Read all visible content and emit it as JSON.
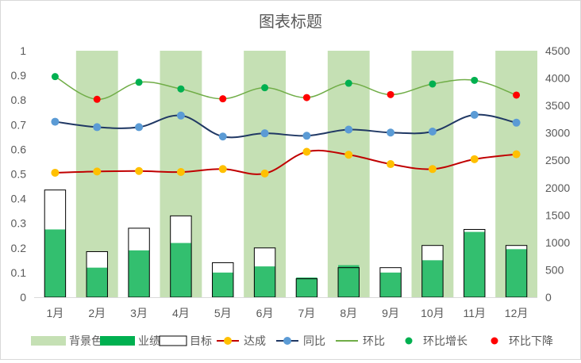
{
  "chart_data": {
    "type": "bar",
    "title": "图表标题",
    "categories": [
      "1月",
      "2月",
      "3月",
      "4月",
      "5月",
      "6月",
      "7月",
      "8月",
      "9月",
      "10月",
      "11月",
      "12月"
    ],
    "left_axis": {
      "min": 0,
      "max": 1,
      "ticks": [
        "0",
        "0.1",
        "0.2",
        "0.3",
        "0.4",
        "0.5",
        "0.6",
        "0.7",
        "0.8",
        "0.9",
        "1"
      ]
    },
    "right_axis": {
      "min": 0,
      "max": 4500,
      "ticks": [
        "0",
        "500",
        "1000",
        "1500",
        "2000",
        "2500",
        "3000",
        "3500",
        "4000",
        "4500"
      ]
    },
    "background_bands": [
      0,
      1,
      0,
      1,
      0,
      1,
      0,
      1,
      0,
      1,
      0,
      1
    ],
    "series": [
      {
        "name": "背景色",
        "kind": "band",
        "color": "#c5e0b4"
      },
      {
        "name": "业绩",
        "kind": "bar",
        "color": "#33bf6f",
        "values": [
          0.275,
          0.12,
          0.19,
          0.22,
          0.1,
          0.125,
          0.08,
          0.13,
          0.1,
          0.15,
          0.265,
          0.195
        ]
      },
      {
        "name": "目标",
        "kind": "bar-outline",
        "color": "#000000",
        "values": [
          0.435,
          0.185,
          0.28,
          0.33,
          0.14,
          0.2,
          0.075,
          0.12,
          0.12,
          0.21,
          0.275,
          0.21
        ]
      },
      {
        "name": "达成",
        "kind": "line",
        "color": "#c00000",
        "marker": "#ffc000",
        "values": [
          0.505,
          0.51,
          0.512,
          0.508,
          0.52,
          0.502,
          0.59,
          0.578,
          0.54,
          0.52,
          0.56,
          0.58
        ]
      },
      {
        "name": "同比",
        "kind": "line",
        "color": "#203864",
        "marker": "#5b9bd5",
        "values": [
          0.712,
          0.69,
          0.69,
          0.737,
          0.652,
          0.665,
          0.655,
          0.68,
          0.668,
          0.672,
          0.74,
          0.708
        ]
      },
      {
        "name": "环比",
        "kind": "line",
        "color": "#70ad47",
        "values": [
          0.895,
          0.803,
          0.872,
          0.845,
          0.805,
          0.85,
          0.81,
          0.868,
          0.822,
          0.865,
          0.88,
          0.82
        ]
      },
      {
        "name": "环比增长",
        "kind": "marker",
        "color": "#00b050"
      },
      {
        "name": "环比下降",
        "kind": "marker",
        "color": "#ff0000"
      }
    ],
    "ring_points_color": [
      "up",
      "down",
      "up",
      "up",
      "down",
      "up",
      "down",
      "up",
      "down",
      "up",
      "up",
      "down"
    ],
    "grid": false,
    "legend_position": "bottom"
  }
}
